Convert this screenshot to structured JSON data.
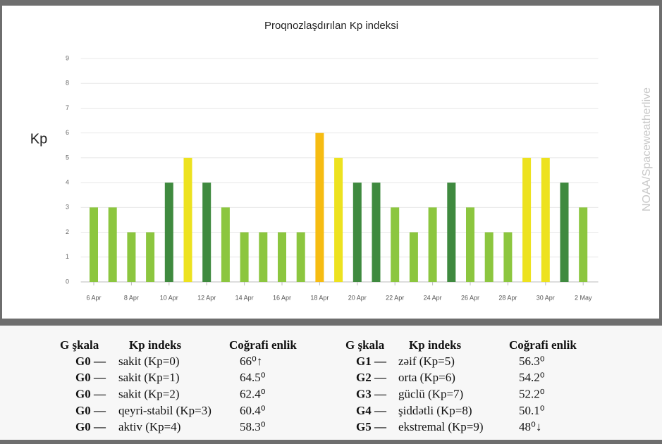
{
  "chart_data": {
    "type": "bar",
    "title": "Proqnozlaşdırılan Kp indeksi",
    "y_label": "Kp",
    "watermark": "NOAA/Spaceweatherlive",
    "categories": [
      "6 Apr",
      null,
      "8 Apr",
      null,
      "10 Apr",
      null,
      "12 Apr",
      null,
      "14 Apr",
      null,
      "16 Apr",
      null,
      "18 Apr",
      null,
      "20 Apr",
      null,
      "22 Apr",
      null,
      "24 Apr",
      null,
      "26 Apr",
      null,
      "28 Apr",
      null,
      "30 Apr",
      null,
      "2 May"
    ],
    "values": [
      3,
      3,
      2,
      2,
      4,
      5,
      4,
      3,
      2,
      2,
      2,
      2,
      6,
      5,
      4,
      4,
      3,
      2,
      3,
      4,
      3,
      2,
      2,
      5,
      5,
      4,
      3
    ],
    "colors": [
      "#8cc63f",
      "#8cc63f",
      "#8cc63f",
      "#8cc63f",
      "#3f8a3f",
      "#ede21f",
      "#3f8a3f",
      "#8cc63f",
      "#8cc63f",
      "#8cc63f",
      "#8cc63f",
      "#8cc63f",
      "#f6bc12",
      "#ede21f",
      "#3f8a3f",
      "#3f8a3f",
      "#8cc63f",
      "#8cc63f",
      "#8cc63f",
      "#3f8a3f",
      "#8cc63f",
      "#8cc63f",
      "#8cc63f",
      "#ede21f",
      "#ede21f",
      "#3f8a3f",
      "#8cc63f"
    ],
    "ylim": [
      0,
      9
    ],
    "yticks": [
      0,
      1,
      2,
      3,
      4,
      5,
      6,
      7,
      8,
      9
    ],
    "grid": true
  },
  "legend_table": {
    "left": {
      "header": [
        "G şkala",
        "Kp indeks",
        "Coğrafi enlik"
      ],
      "rows": [
        [
          "G0 —",
          "sakit (Kp=0)",
          "66⁰↑"
        ],
        [
          "G0 —",
          "sakit (Kp=1)",
          "64.5⁰"
        ],
        [
          "G0 —",
          "sakit (Kp=2)",
          "62.4⁰"
        ],
        [
          "G0 —",
          "qeyri-stabil (Kp=3)",
          "60.4⁰"
        ],
        [
          "G0 —",
          "aktiv (Kp=4)",
          "58.3⁰"
        ]
      ]
    },
    "right": {
      "header": [
        "G şkala",
        "Kp indeks",
        "Coğrafi enlik"
      ],
      "rows": [
        [
          "G1 —",
          "zəif (Kp=5)",
          "56.3⁰"
        ],
        [
          "G2 —",
          "orta (Kp=6)",
          "54.2⁰"
        ],
        [
          "G3 —",
          "güclü (Kp=7)",
          "52.2⁰"
        ],
        [
          "G4 —",
          "şiddətli (Kp=8)",
          "50.1⁰"
        ],
        [
          "G5 —",
          "ekstremal (Kp=9)",
          "48⁰↓"
        ]
      ]
    }
  }
}
